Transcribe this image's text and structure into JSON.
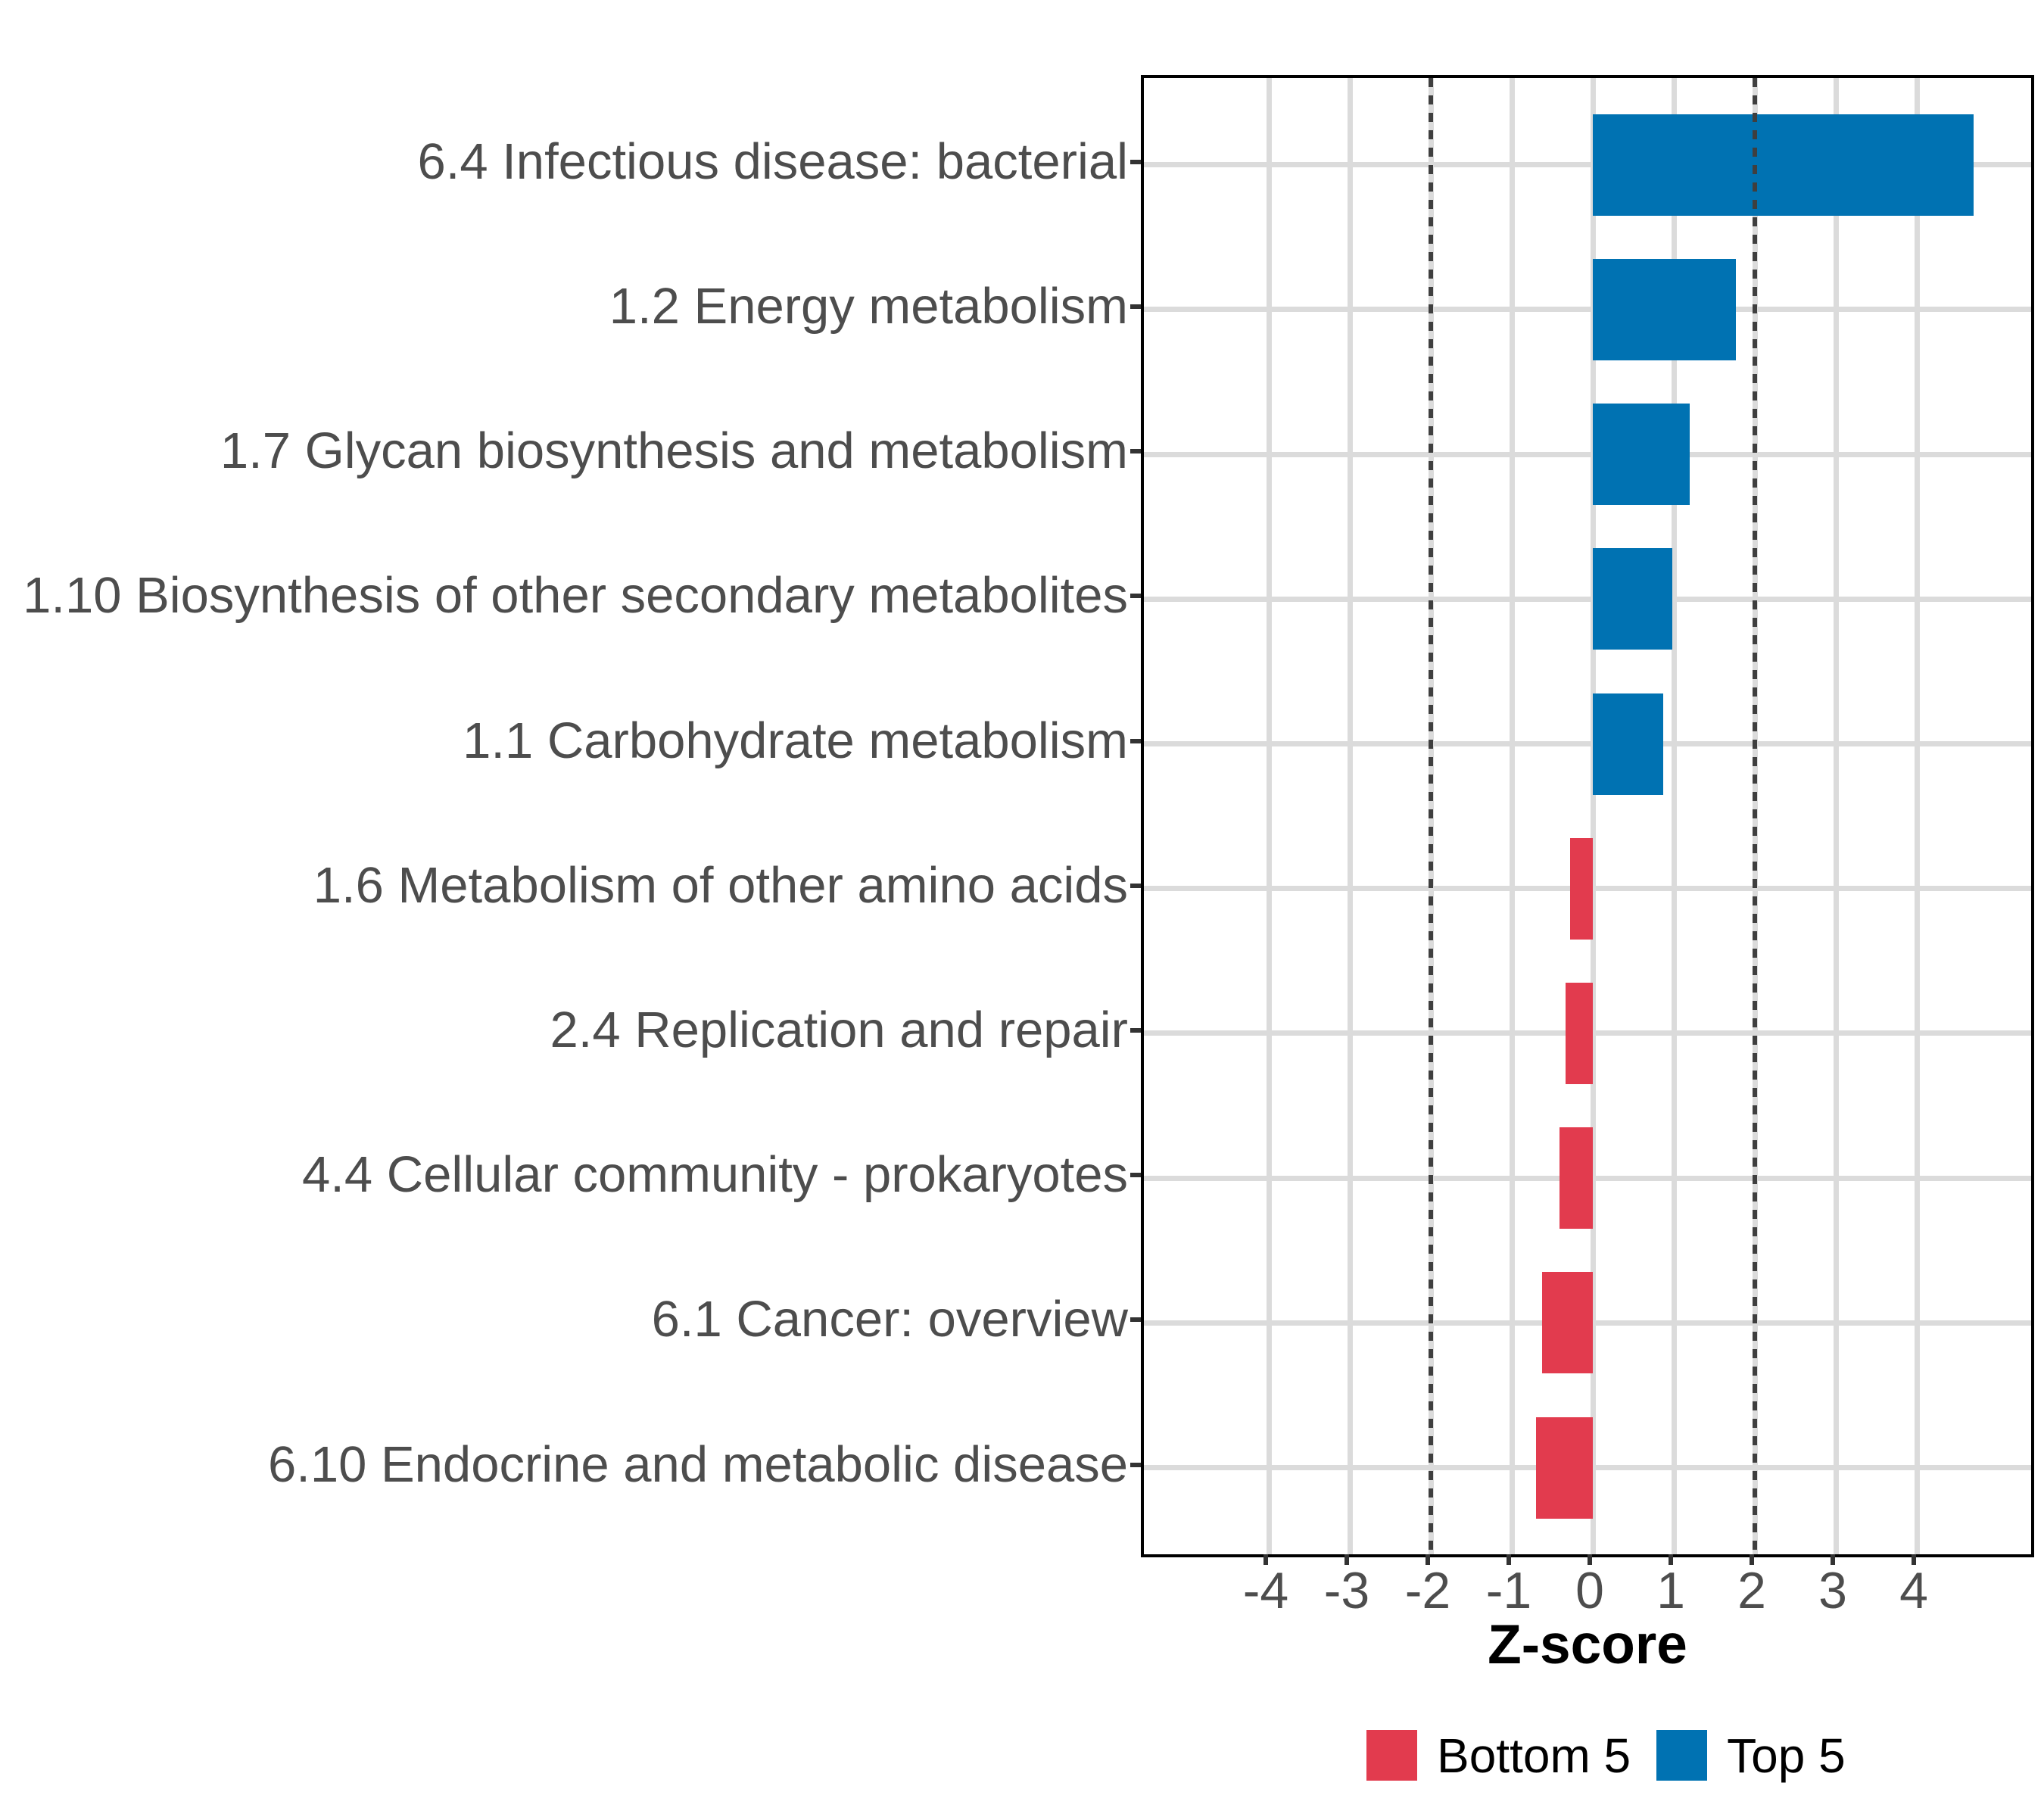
{
  "figure": {
    "x_axis_title": "Z-score",
    "legend": [
      {
        "label": "Bottom 5",
        "color": "#e23b4e"
      },
      {
        "label": "Top 5",
        "color": "#0072b2"
      }
    ]
  },
  "chart_data": {
    "type": "bar",
    "orientation": "horizontal",
    "title": "",
    "xlabel": "Z-score",
    "ylabel": "",
    "categories": [
      "6.4 Infectious disease: bacterial",
      "1.2 Energy metabolism",
      "1.7 Glycan biosynthesis and metabolism",
      "1.10 Biosynthesis of other secondary metabolites",
      "1.1 Carbohydrate metabolism",
      "1.6 Metabolism of other amino acids",
      "2.4 Replication and repair",
      "4.4 Cellular community - prokaryotes",
      "6.1 Cancer: overview",
      "6.10 Endocrine and metabolic disease"
    ],
    "values": [
      4.7,
      1.77,
      1.2,
      0.98,
      0.87,
      -0.28,
      -0.34,
      -0.41,
      -0.63,
      -0.7
    ],
    "groups": [
      "Top 5",
      "Top 5",
      "Top 5",
      "Top 5",
      "Top 5",
      "Bottom 5",
      "Bottom 5",
      "Bottom 5",
      "Bottom 5",
      "Bottom 5"
    ],
    "colors": {
      "Bottom 5": "#e23b4e",
      "Top 5": "#0072b2"
    },
    "xlim": [
      -5.5,
      5.5
    ],
    "xticks": [
      -4,
      -3,
      -2,
      -1,
      0,
      1,
      2,
      3,
      4
    ],
    "xtick_labels": [
      "-4",
      "-3",
      "-2",
      "-1",
      "0",
      "1",
      "2",
      "3",
      "4"
    ],
    "reference_lines": [
      -2,
      2
    ],
    "grid": "major-on",
    "legend_position": "bottom-right",
    "panel_border_color": "#000000",
    "gridline_color": "#dbdbdb",
    "reference_line_color": "#3f3f3f",
    "axis_text_color": "#4d4d4d"
  }
}
